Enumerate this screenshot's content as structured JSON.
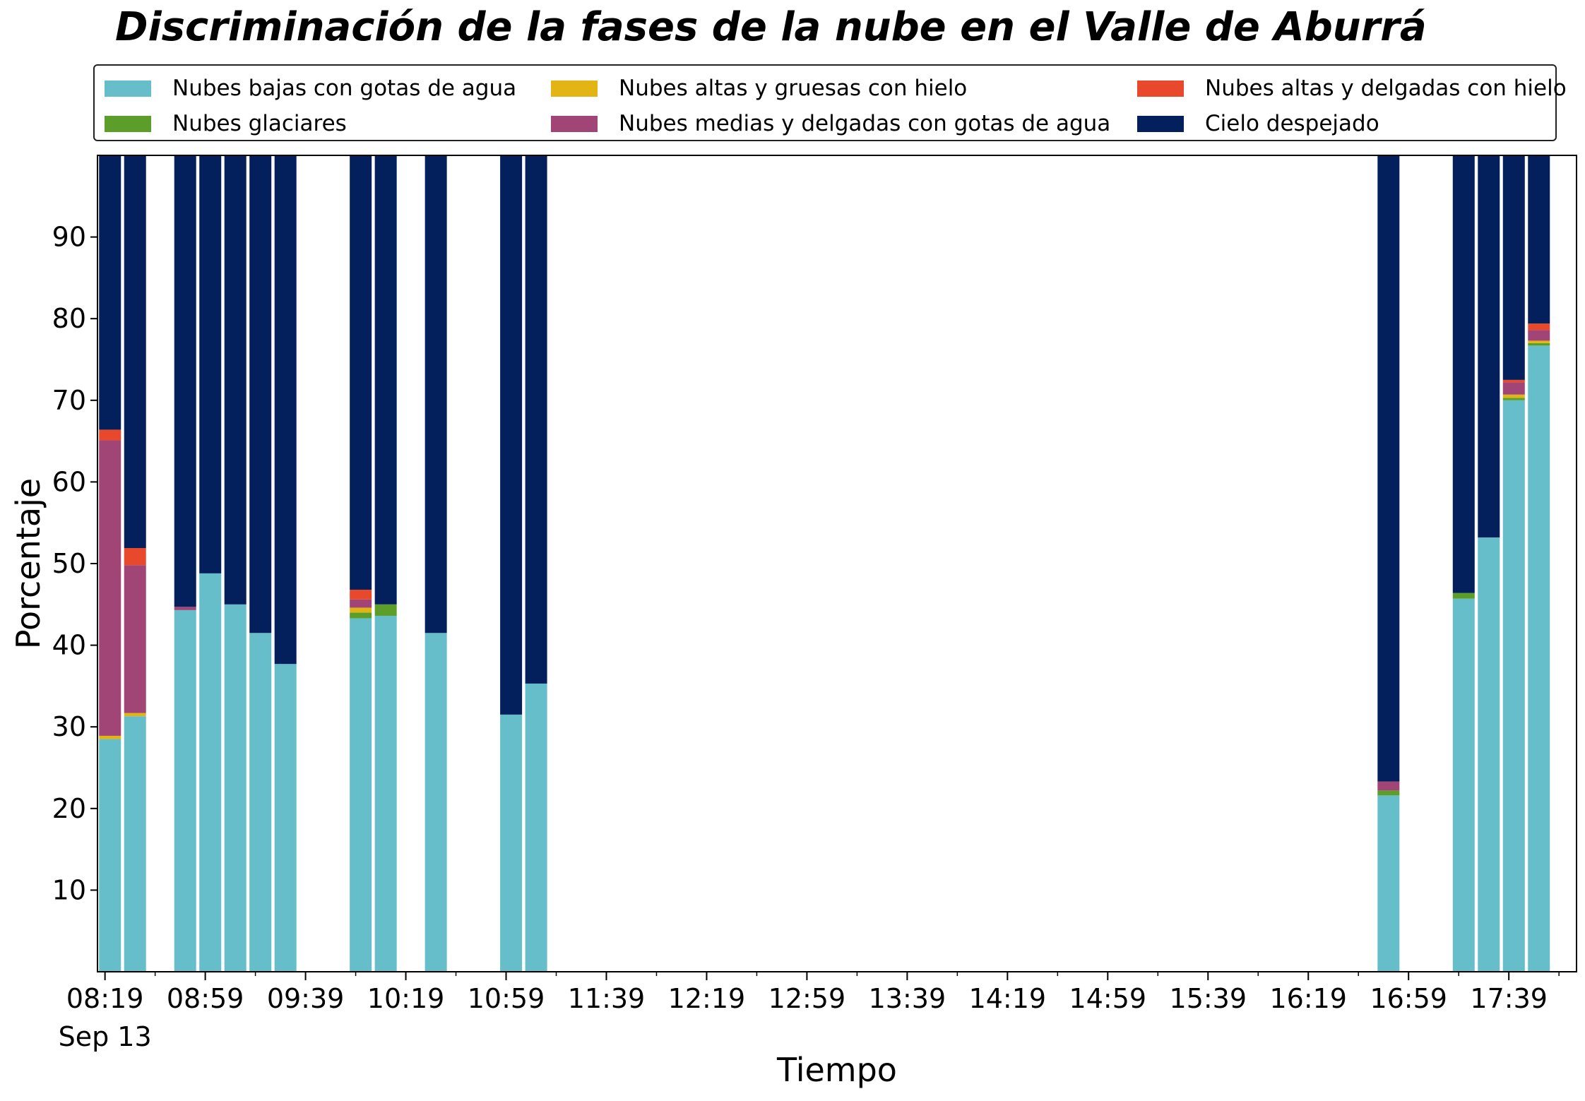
{
  "chart_data": {
    "type": "bar",
    "stacked": true,
    "title": "Discriminación de la fases de la nube en el Valle de Aburrá",
    "xlabel": "Tiempo",
    "ylabel": "Porcentaje",
    "ylim": [
      0,
      100
    ],
    "yticks": [
      10,
      20,
      30,
      40,
      50,
      60,
      70,
      80,
      90
    ],
    "x_start_label": "08:19",
    "x_date_label": "Sep 13",
    "x_tick_labels": [
      "08:19",
      "08:59",
      "09:39",
      "10:19",
      "10:59",
      "11:39",
      "12:19",
      "12:59",
      "13:39",
      "14:19",
      "14:59",
      "15:39",
      "16:19",
      "16:59",
      "17:39"
    ],
    "x_tick_minutes": [
      499,
      539,
      579,
      619,
      659,
      699,
      739,
      779,
      819,
      859,
      899,
      939,
      979,
      1019,
      1059
    ],
    "x_minor_tick_minutes": [
      519,
      559,
      599,
      639,
      679,
      719,
      759,
      799,
      839,
      879,
      919,
      959,
      999,
      1039,
      1079
    ],
    "xlim_minutes": [
      496,
      1086
    ],
    "bar_times_minutes": [
      501,
      511,
      531,
      541,
      551,
      561,
      571,
      601,
      611,
      631,
      661,
      671,
      1011,
      1041,
      1051,
      1061,
      1071
    ],
    "legend_placement": "top, above plot, 3 columns",
    "series": [
      {
        "name": "Nubes bajas con gotas de agua",
        "color": "#65bec9",
        "values": [
          28.5,
          31.3,
          44.3,
          48.8,
          45.0,
          41.5,
          37.7,
          43.3,
          43.6,
          41.5,
          31.5,
          35.3,
          21.6,
          45.7,
          53.2,
          70.0,
          76.7
        ]
      },
      {
        "name": "Nubes glaciares",
        "color": "#5d9e2a",
        "values": [
          0,
          0,
          0,
          0,
          0,
          0,
          0,
          0.7,
          1.4,
          0,
          0,
          0,
          0.6,
          0.7,
          0,
          0.3,
          0.3
        ]
      },
      {
        "name": "Nubes altas y gruesas con hielo",
        "color": "#e2b514",
        "values": [
          0.4,
          0.4,
          0,
          0,
          0,
          0,
          0,
          0.6,
          0,
          0,
          0,
          0,
          0,
          0,
          0,
          0.4,
          0.3
        ]
      },
      {
        "name": "Nubes medias y delgadas con gotas de agua",
        "color": "#a14476",
        "values": [
          36.2,
          18.1,
          0.4,
          0,
          0,
          0,
          0,
          1.0,
          0,
          0,
          0,
          0,
          1.1,
          0,
          0,
          1.5,
          1.3
        ]
      },
      {
        "name": "Nubes altas y delgadas con hielo",
        "color": "#e8492c",
        "values": [
          1.3,
          2.1,
          0,
          0,
          0,
          0,
          0,
          1.2,
          0,
          0,
          0,
          0,
          0,
          0,
          0,
          0.3,
          0.8
        ]
      },
      {
        "name": "Cielo despejado",
        "color": "#03205c",
        "values": [
          33.6,
          48.1,
          55.3,
          51.2,
          55.0,
          58.5,
          62.3,
          53.2,
          55.0,
          58.5,
          68.5,
          64.7,
          76.7,
          53.6,
          46.8,
          27.5,
          20.6
        ]
      }
    ]
  }
}
